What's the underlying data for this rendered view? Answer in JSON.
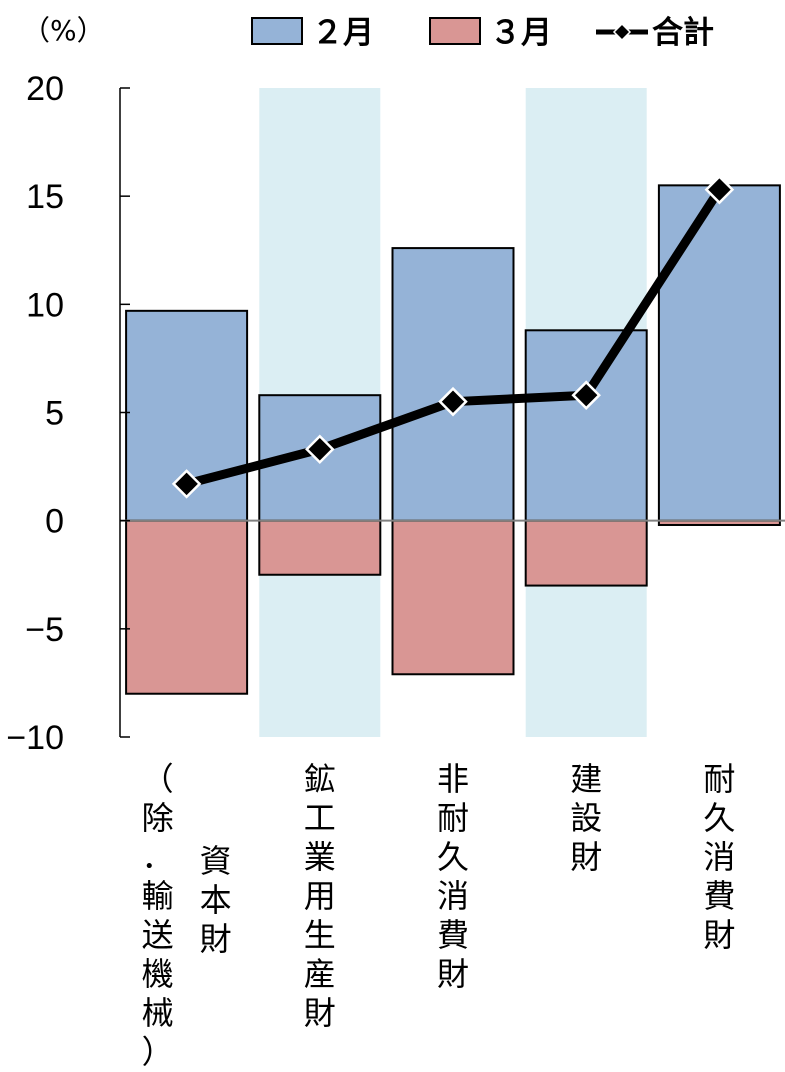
{
  "chart_data": {
    "type": "bar",
    "unit_label": "（%）",
    "categories": [
      [
        "資本財",
        "（除．輸送機械）"
      ],
      [
        "鉱工業用生産財"
      ],
      [
        "非耐久消費財"
      ],
      [
        "建設財"
      ],
      [
        "耐久消費財"
      ]
    ],
    "series": [
      {
        "name": "２月",
        "type": "bar",
        "color": "#95b3d7",
        "values": [
          9.7,
          5.8,
          12.6,
          8.8,
          15.5
        ]
      },
      {
        "name": "３月",
        "type": "bar",
        "color": "#d99694",
        "values": [
          -8.0,
          -2.5,
          -7.1,
          -3.0,
          -0.2
        ]
      },
      {
        "name": "合計",
        "type": "line",
        "color": "#000000",
        "values": [
          1.7,
          3.3,
          5.5,
          5.8,
          15.3
        ]
      }
    ],
    "ylim": [
      -10,
      20
    ],
    "yticks": [
      20,
      15,
      10,
      5,
      0,
      -5,
      -10
    ],
    "ytick_labels": [
      "20",
      "15",
      "10",
      "5",
      "0",
      "−5",
      "−10"
    ],
    "shaded_categories": [
      1,
      3
    ],
    "shade_color": "#dbeef3",
    "legend_position": "top"
  }
}
